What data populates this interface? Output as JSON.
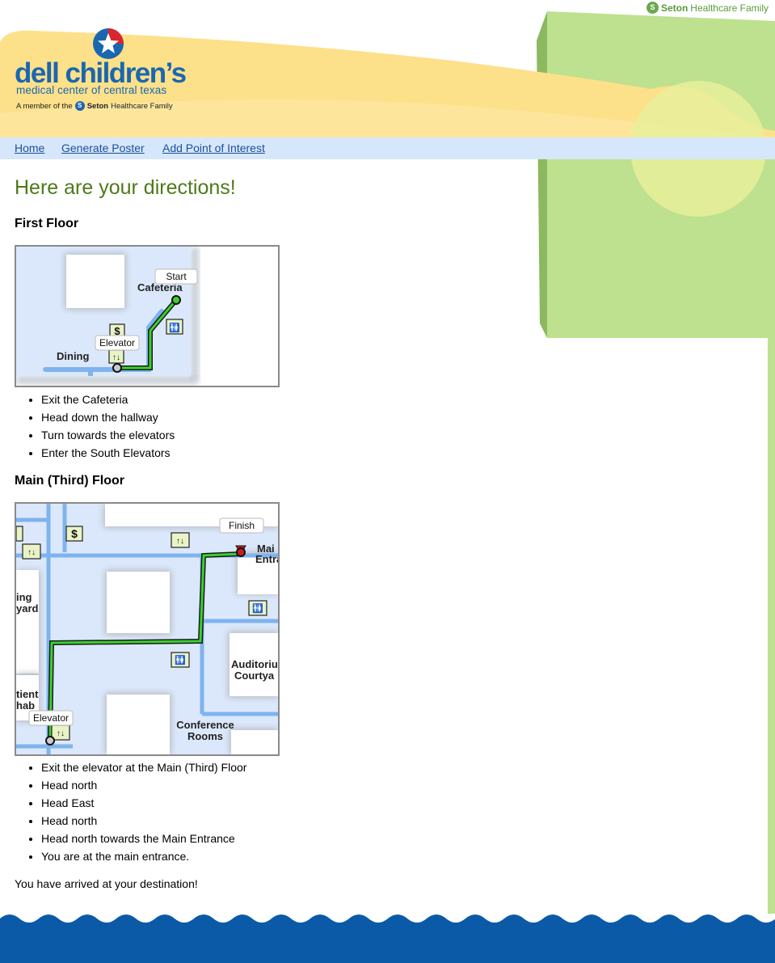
{
  "header": {
    "top_brand": {
      "name_bold": "Seton",
      "name_rest": "Healthcare Family"
    },
    "logo": {
      "title": "dell children’s",
      "subtitle": "medical center of central texas",
      "member_prefix": "A member of the",
      "member_bold": "Seton",
      "member_rest": "Healthcare Family"
    }
  },
  "nav": {
    "items": [
      "Home",
      "Generate Poster",
      "Add Point of Interest"
    ]
  },
  "page": {
    "title": "Here are your directions!",
    "floors": [
      {
        "name": "First Floor",
        "map_labels": {
          "start": "Start",
          "elevator": "Elevator",
          "cafeteria": "Cafeteria",
          "dining": "Dining"
        },
        "steps": [
          "Exit the Cafeteria",
          "Head down the hallway",
          "Turn towards the elevators",
          "Enter the South Elevators"
        ]
      },
      {
        "name": "Main (Third) Floor",
        "map_labels": {
          "finish": "Finish",
          "elevator": "Elevator",
          "main_entrance_1": "Mai",
          "main_entrance_2": "Entrai",
          "courtyard_1": "ing",
          "courtyard_2": "yard",
          "rehab_1": "tient",
          "rehab_2": "hab",
          "auditorium_1": "Auditoriu",
          "auditorium_2": "Courtya",
          "conference_1": "Conference",
          "conference_2": "Rooms"
        },
        "steps": [
          "Exit the elevator at the Main (Third) Floor",
          "Head north",
          "Head East",
          "Head north",
          "Head north towards the Main Entrance",
          "You are at the main entrance."
        ]
      }
    ],
    "arrival": "You have arrived at your destination!"
  },
  "icons": {
    "elevator": "elevator-icon",
    "restroom": "restroom-icon",
    "cashier": "dollar-icon",
    "seton": "seton-logo-icon",
    "star": "star-badge-icon"
  },
  "colors": {
    "nav_bg": "#d7e7fb",
    "link": "#1a4f9e",
    "title_green": "#4e7a19",
    "brand_blue": "#1a67b0",
    "sand": "#fde08a",
    "grass": "#bde18e",
    "footer_blue": "#0b5aa8",
    "route_green": "#3ad12e",
    "hallway_blue": "#7fb3ee"
  }
}
